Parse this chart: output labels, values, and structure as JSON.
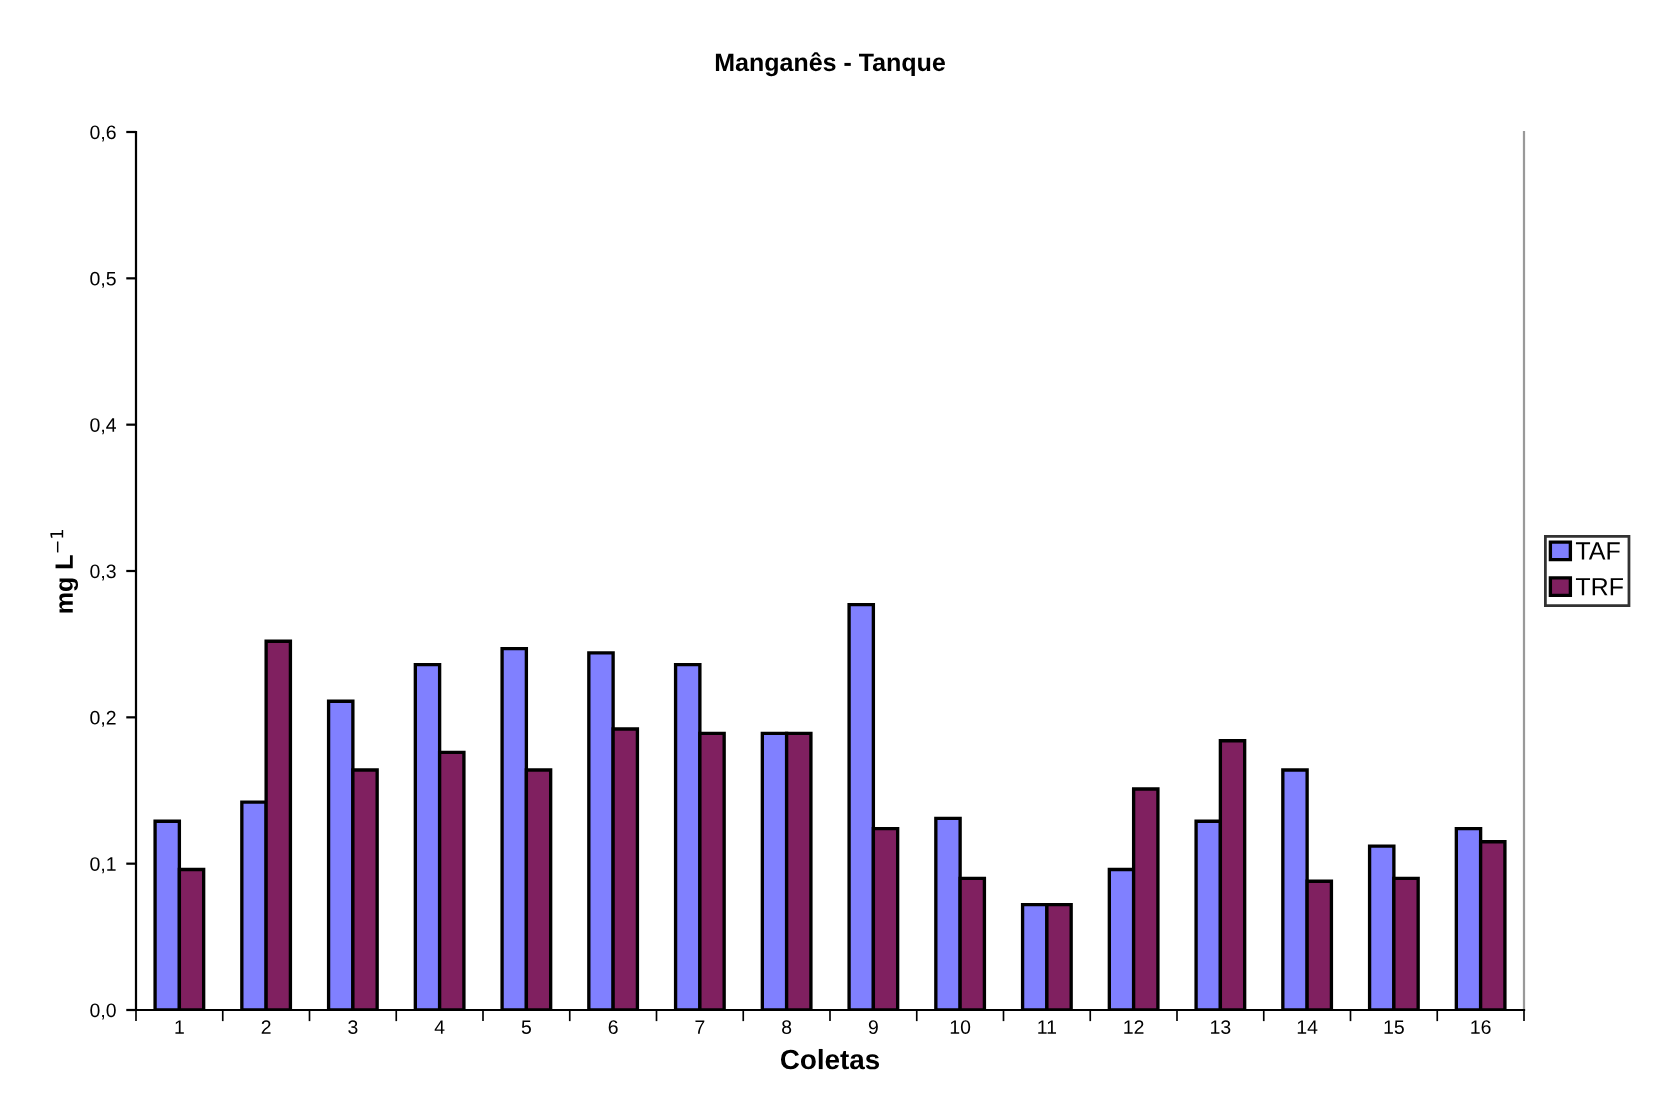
{
  "chart_data": {
    "type": "bar",
    "title": "Manganês - Tanque",
    "xlabel": "Coletas",
    "ylabel": "mg L$^{−1}$",
    "categories": [
      "1",
      "2",
      "3",
      "4",
      "5",
      "6",
      "7",
      "8",
      "9",
      "10",
      "11",
      "12",
      "13",
      "14",
      "15",
      "16"
    ],
    "series": [
      {
        "name": "TAF",
        "color": "#8080ff",
        "values": [
          0.129,
          0.142,
          0.211,
          0.236,
          0.247,
          0.244,
          0.236,
          0.189,
          0.277,
          0.131,
          0.072,
          0.096,
          0.129,
          0.164,
          0.112,
          0.124
        ]
      },
      {
        "name": "TRF",
        "color": "#802060",
        "values": [
          0.096,
          0.252,
          0.164,
          0.176,
          0.164,
          0.192,
          0.189,
          0.189,
          0.124,
          0.09,
          0.072,
          0.151,
          0.184,
          0.088,
          0.09,
          0.115
        ]
      }
    ],
    "ylim": [
      0,
      0.6
    ],
    "yticks": [
      {
        "value": 0,
        "label": "0,0"
      },
      {
        "value": 0.1,
        "label": "0,1"
      },
      {
        "value": 0.2,
        "label": "0,2"
      },
      {
        "value": 0.3,
        "label": "0,3"
      },
      {
        "value": 0.4,
        "label": "0,4"
      },
      {
        "value": 0.5,
        "label": "0,5"
      },
      {
        "value": 0.6,
        "label": "0,6"
      }
    ],
    "grid": false,
    "legend": "right"
  }
}
